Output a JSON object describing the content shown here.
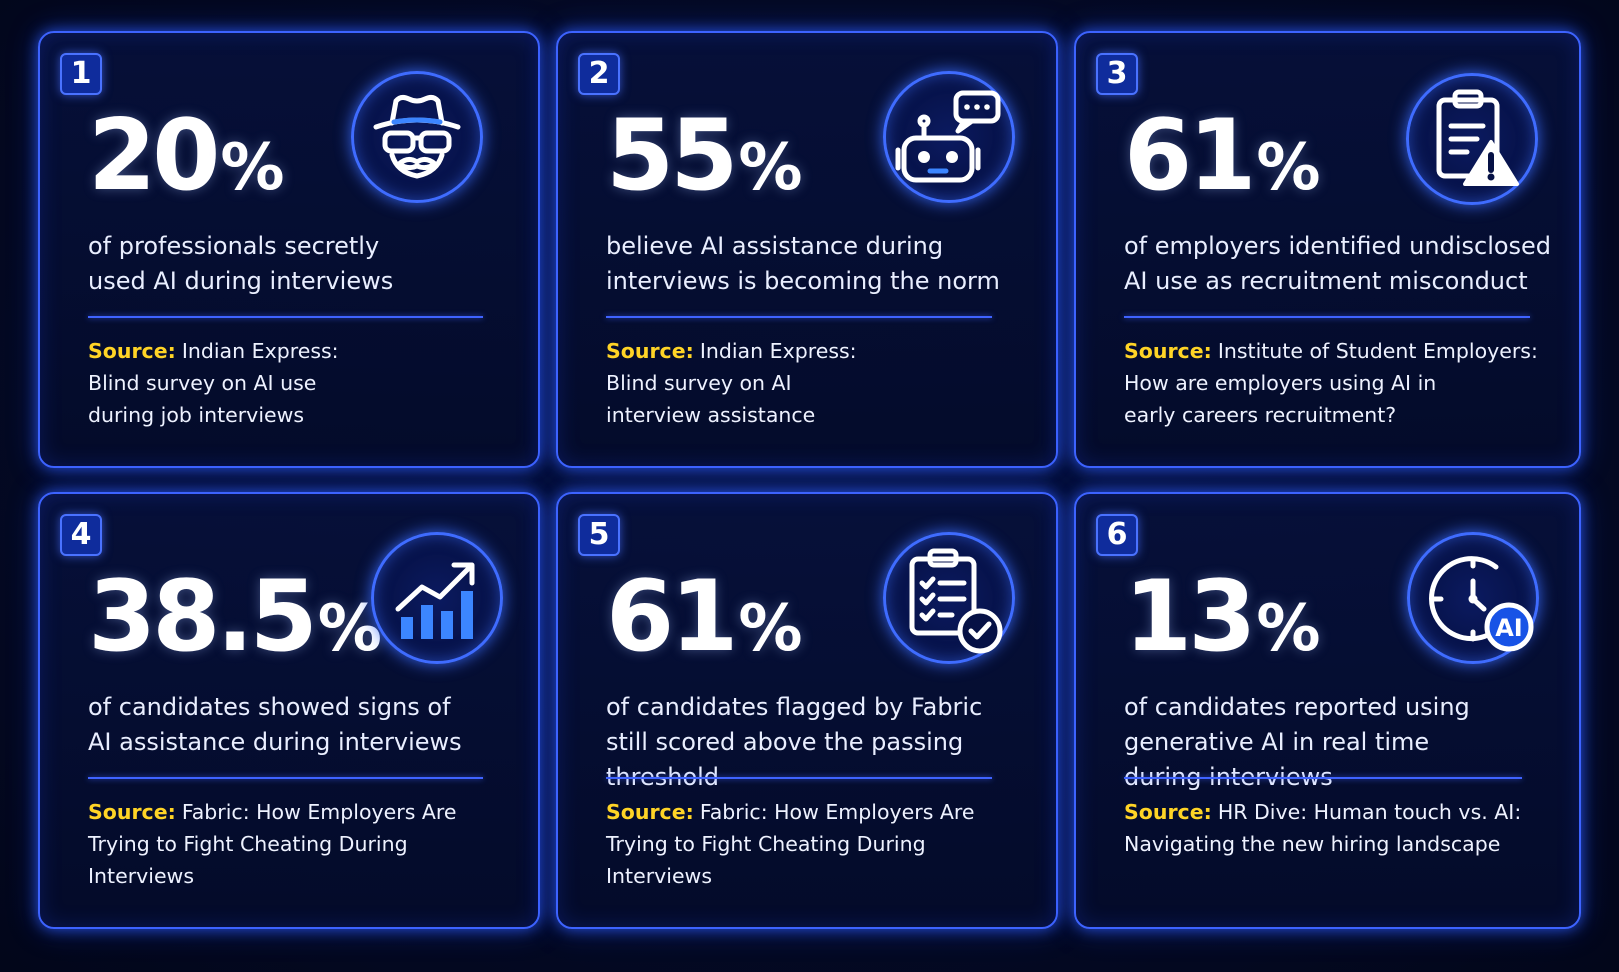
{
  "colors": {
    "background": "#040a26",
    "card_border": "#3d63ff",
    "badge_fill": "#0f2c9c",
    "source_label": "#ffd426",
    "text": "#ffffff"
  },
  "cards": [
    {
      "number": "1",
      "stat_value": "20",
      "stat_unit": "%",
      "description_lines": [
        "of professionals secretly",
        "used AI during interviews"
      ],
      "source_label": "Source:",
      "source_lines": [
        "Indian Express:",
        "Blind survey on AI use",
        "during job interviews"
      ],
      "icon": "spy-incognito-icon"
    },
    {
      "number": "2",
      "stat_value": "55",
      "stat_unit": "%",
      "description_lines": [
        "believe AI assistance during",
        "interviews is becoming the norm"
      ],
      "source_label": "Source:",
      "source_lines": [
        "Indian Express:",
        "Blind survey on AI",
        "interview assistance"
      ],
      "icon": "robot-chat-icon"
    },
    {
      "number": "3",
      "stat_value": "61",
      "stat_unit": "%",
      "description_lines": [
        "of employers identified undisclosed",
        "AI use as recruitment misconduct"
      ],
      "source_label": "Source:",
      "source_lines": [
        "Institute of Student Employers:",
        "How are employers using AI in",
        "early careers recruitment?"
      ],
      "icon": "clipboard-warning-icon"
    },
    {
      "number": "4",
      "stat_value": "38.5",
      "stat_unit": "%",
      "description_lines": [
        "of candidates showed signs of",
        "AI assistance during interviews"
      ],
      "source_label": "Source:",
      "source_lines": [
        "Fabric: How Employers Are",
        "Trying to Fight Cheating During",
        "Interviews"
      ],
      "icon": "growth-chart-icon"
    },
    {
      "number": "5",
      "stat_value": "61",
      "stat_unit": "%",
      "description_lines": [
        "of candidates flagged by Fabric",
        "still scored above the passing",
        "threshold"
      ],
      "source_label": "Source:",
      "source_lines": [
        "Fabric: How Employers Are",
        "Trying to Fight Cheating During",
        "Interviews"
      ],
      "icon": "clipboard-check-icon"
    },
    {
      "number": "6",
      "stat_value": "13",
      "stat_unit": "%",
      "description_lines": [
        "of candidates reported using",
        "generative AI in real time",
        "during interviews"
      ],
      "source_label": "Source:",
      "source_lines": [
        "HR Dive: Human touch vs. AI:",
        "Navigating the new hiring landscape"
      ],
      "icon": "clock-ai-icon",
      "icon_badge_text": "AI"
    }
  ]
}
